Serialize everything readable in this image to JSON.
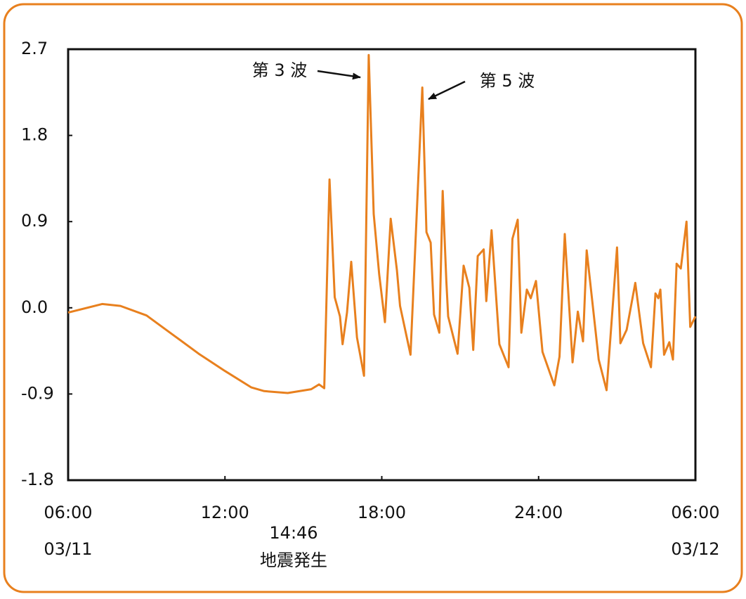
{
  "chart_data": {
    "type": "line",
    "color": "#e8801e",
    "x": [
      6,
      7.3,
      8,
      9,
      10,
      11,
      12,
      13,
      13.5,
      14.4,
      15.3,
      15.6,
      15.8,
      16.0,
      16.2,
      16.4,
      16.5,
      16.67,
      16.83,
      17.05,
      17.32,
      17.5,
      17.69,
      17.9,
      18.12,
      18.34,
      18.58,
      18.7,
      19.1,
      19.55,
      19.71,
      19.87,
      20.0,
      20.2,
      20.33,
      20.47,
      20.54,
      20.9,
      21.13,
      21.35,
      21.5,
      21.67,
      21.9,
      22.0,
      22.2,
      22.5,
      22.85,
      23.0,
      23.2,
      23.34,
      23.55,
      23.7,
      23.9,
      24.15,
      24.6,
      24.8,
      25.0,
      25.3,
      25.5,
      25.7,
      25.84,
      26.3,
      26.6,
      27.0,
      27.13,
      27.37,
      27.7,
      28.0,
      28.3,
      28.47,
      28.58,
      28.66,
      28.8,
      29.0,
      29.14,
      29.28,
      29.44,
      29.66,
      29.8,
      30.0
    ],
    "values": [
      -0.05,
      0.04,
      0.02,
      -0.08,
      -0.28,
      -0.48,
      -0.66,
      -0.83,
      -0.87,
      -0.89,
      -0.85,
      -0.8,
      -0.84,
      1.34,
      0.11,
      -0.09,
      -0.38,
      -0.05,
      0.48,
      -0.31,
      -0.71,
      2.64,
      0.98,
      0.35,
      -0.15,
      0.93,
      0.39,
      0.02,
      -0.49,
      2.3,
      0.79,
      0.68,
      -0.07,
      -0.26,
      1.22,
      0.28,
      -0.09,
      -0.48,
      0.44,
      0.21,
      -0.44,
      0.54,
      0.61,
      0.07,
      0.81,
      -0.38,
      -0.62,
      0.72,
      0.92,
      -0.26,
      0.19,
      0.1,
      0.28,
      -0.46,
      -0.81,
      -0.51,
      0.77,
      -0.57,
      -0.04,
      -0.35,
      0.6,
      -0.54,
      -0.86,
      0.63,
      -0.37,
      -0.23,
      0.26,
      -0.37,
      -0.62,
      0.15,
      0.1,
      0.19,
      -0.49,
      -0.36,
      -0.54,
      0.46,
      0.41,
      0.9,
      -0.2,
      -0.09
    ],
    "xlim": [
      6,
      30
    ],
    "xticks": [
      {
        "value": 6,
        "label": "06:00"
      },
      {
        "value": 12,
        "label": "12:00"
      },
      {
        "value": 18,
        "label": "18:00"
      },
      {
        "value": 24,
        "label": "24:00"
      },
      {
        "value": 30,
        "label": "06:00"
      }
    ],
    "ylim": [
      -1.8,
      2.7
    ],
    "yticks": [
      2.7,
      1.8,
      0.9,
      {
        "value": 0,
        "label": "0.0"
      },
      -0.9,
      -1.8
    ],
    "dates": [
      "03/11",
      "03/12"
    ],
    "event": {
      "time": "14:46",
      "label": "地震発生"
    },
    "annotations": [
      "第 3 波",
      "第 5 波"
    ]
  }
}
